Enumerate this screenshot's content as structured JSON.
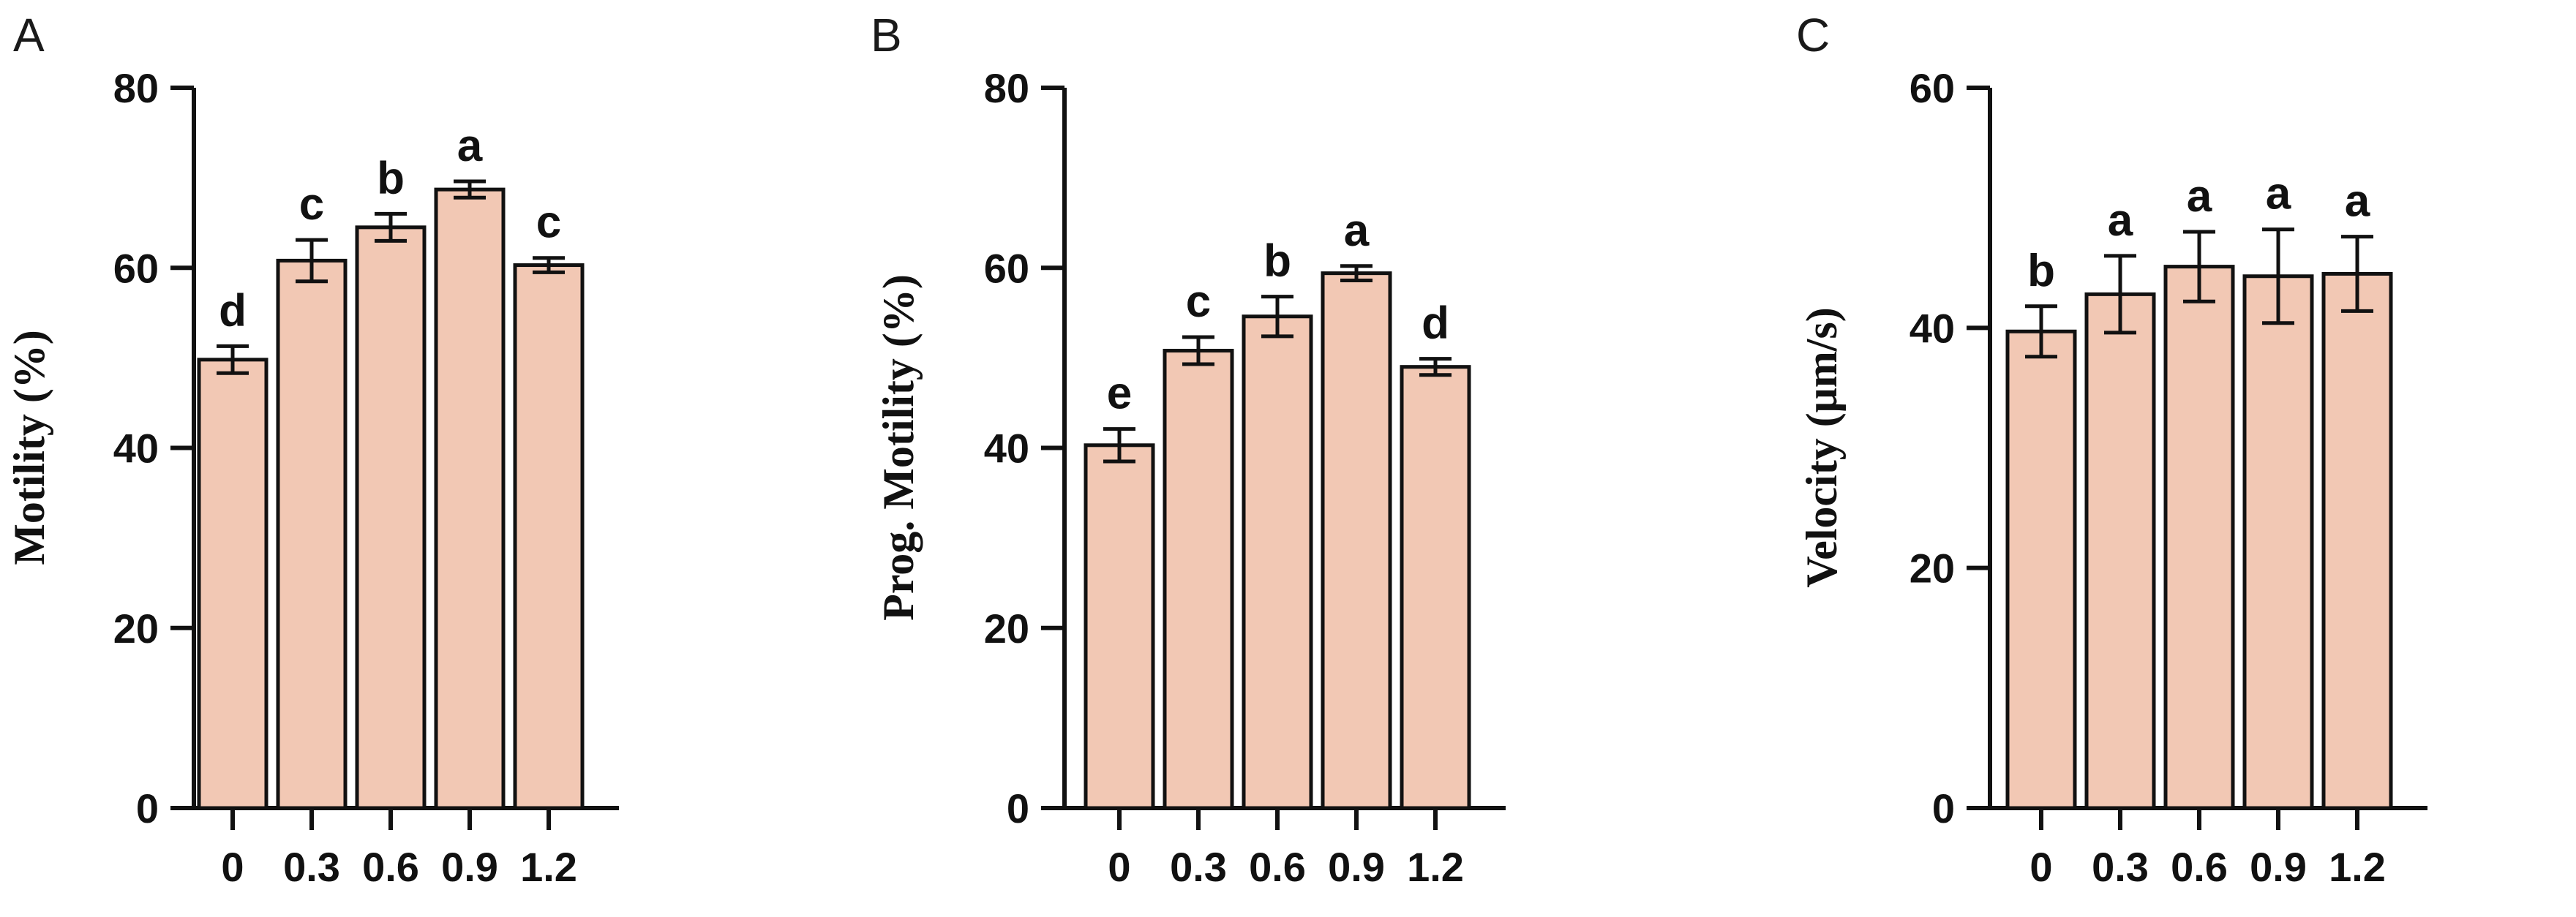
{
  "chart_data": [
    {
      "type": "bar",
      "panel": "A",
      "ylabel": "Motility (%)",
      "xlabel": "",
      "ylim": [
        0,
        80
      ],
      "yticks": [
        0,
        20,
        40,
        60,
        80
      ],
      "categories": [
        "0",
        "0.3",
        "0.6",
        "0.9",
        "1.2"
      ],
      "values": [
        49.8,
        60.8,
        64.5,
        68.7,
        60.3
      ],
      "errors": [
        1.5,
        2.3,
        1.5,
        0.9,
        0.8
      ],
      "significance": [
        "d",
        "c",
        "b",
        "a",
        "c"
      ],
      "bar_color": "#f2c8b4",
      "grid": false
    },
    {
      "type": "bar",
      "panel": "B",
      "ylabel": "Prog. Motility (%)",
      "xlabel": "",
      "ylim": [
        0,
        80
      ],
      "yticks": [
        0,
        20,
        40,
        60,
        80
      ],
      "categories": [
        "0",
        "0.3",
        "0.6",
        "0.9",
        "1.2"
      ],
      "values": [
        40.3,
        50.8,
        54.6,
        59.4,
        49.0
      ],
      "errors": [
        1.8,
        1.5,
        2.2,
        0.8,
        0.9
      ],
      "significance": [
        "e",
        "c",
        "b",
        "a",
        "d"
      ],
      "bar_color": "#f2c8b4",
      "grid": false
    },
    {
      "type": "bar",
      "panel": "C",
      "ylabel": "Velocity (μm/s)",
      "xlabel": "",
      "ylim": [
        0,
        60
      ],
      "yticks": [
        0,
        20,
        40,
        60
      ],
      "categories": [
        "0",
        "0.3",
        "0.6",
        "0.9",
        "1.2"
      ],
      "values": [
        39.7,
        42.8,
        45.1,
        44.3,
        44.5
      ],
      "errors": [
        2.1,
        3.2,
        2.9,
        3.9,
        3.1
      ],
      "significance": [
        "b",
        "a",
        "a",
        "a",
        "a"
      ],
      "bar_color": "#f2c8b4",
      "grid": false
    }
  ]
}
